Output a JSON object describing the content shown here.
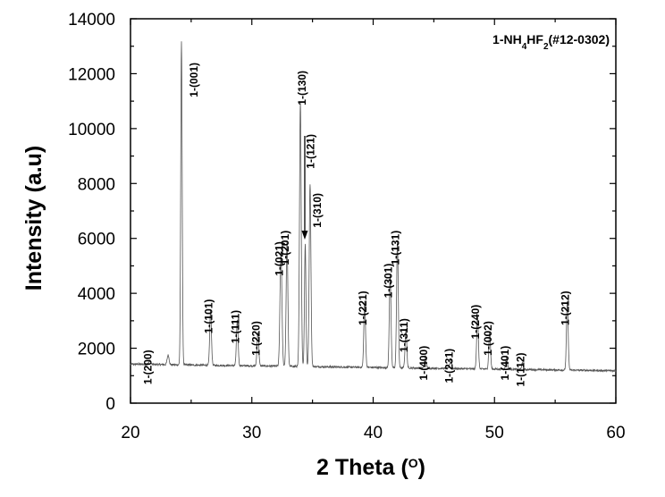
{
  "chart_data": {
    "type": "line",
    "xlabel": "2 Theta (",
    "xlabel_unit": "O",
    "xlabel_close": ")",
    "ylabel": "Intensity (a.u)",
    "xlim": [
      20,
      60
    ],
    "ylim": [
      0,
      14000
    ],
    "x_ticks": [
      "20",
      "30",
      "40",
      "50",
      "60"
    ],
    "y_ticks": [
      "0",
      "2000",
      "4000",
      "6000",
      "8000",
      "10000",
      "12000",
      "14000"
    ],
    "legend": {
      "prefix": "1-NH",
      "sub1": "4",
      "mid": "HF",
      "sub2": "2",
      "suffix": "(#12-0302)",
      "position": "top-right"
    },
    "line_color": "#555555",
    "peaks": [
      {
        "x": 21.6,
        "y": 1550,
        "w": 0.08,
        "label": "1-(200)"
      },
      {
        "x": 23.1,
        "y": 1750,
        "w": 0.08,
        "label": ""
      },
      {
        "x": 24.2,
        "y": 13150,
        "w": 0.06,
        "label": "1-(001)"
      },
      {
        "x": 26.6,
        "y": 3400,
        "w": 0.07,
        "label": "1-(101)"
      },
      {
        "x": 28.8,
        "y": 3000,
        "w": 0.07,
        "label": "1-(111)"
      },
      {
        "x": 30.5,
        "y": 2600,
        "w": 0.07,
        "label": "1-(220)"
      },
      {
        "x": 32.4,
        "y": 5500,
        "w": 0.08,
        "label": "1-(021)"
      },
      {
        "x": 32.9,
        "y": 5900,
        "w": 0.07,
        "label": "1-(201)"
      },
      {
        "x": 34.0,
        "y": 11000,
        "w": 0.07,
        "label": "1-(130)"
      },
      {
        "x": 34.4,
        "y": 5800,
        "w": 0.06,
        "label": "1-(121)"
      },
      {
        "x": 34.8,
        "y": 8000,
        "w": 0.07,
        "label": "1-(310)"
      },
      {
        "x": 39.3,
        "y": 3700,
        "w": 0.07,
        "label": "1-(221)"
      },
      {
        "x": 41.4,
        "y": 4700,
        "w": 0.07,
        "label": "1-(301)"
      },
      {
        "x": 42.0,
        "y": 5900,
        "w": 0.07,
        "label": "1-(131)"
      },
      {
        "x": 42.7,
        "y": 2700,
        "w": 0.07,
        "label": "1-(311)"
      },
      {
        "x": 44.3,
        "y": 1700,
        "w": 0.07,
        "label": "1-(400)"
      },
      {
        "x": 46.4,
        "y": 1600,
        "w": 0.07,
        "label": "1-(231)"
      },
      {
        "x": 48.6,
        "y": 3200,
        "w": 0.07,
        "label": "1-(240)"
      },
      {
        "x": 49.6,
        "y": 2600,
        "w": 0.07,
        "label": "1-(002)"
      },
      {
        "x": 51.0,
        "y": 1700,
        "w": 0.07,
        "label": "1-(401)"
      },
      {
        "x": 52.3,
        "y": 1450,
        "w": 0.07,
        "label": "1-(112)"
      },
      {
        "x": 56.0,
        "y": 3700,
        "w": 0.07,
        "label": "1-(212)"
      }
    ]
  }
}
